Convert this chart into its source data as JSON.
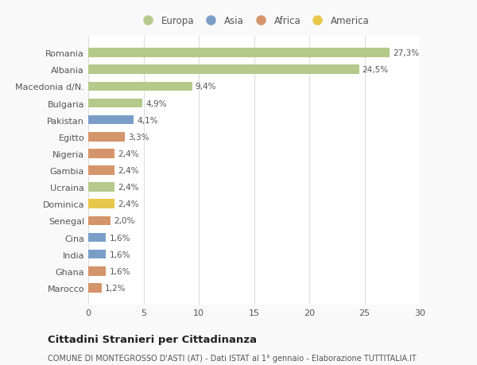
{
  "categories": [
    "Marocco",
    "Ghana",
    "India",
    "Cina",
    "Senegal",
    "Dominica",
    "Ucraina",
    "Gambia",
    "Nigeria",
    "Egitto",
    "Pakistan",
    "Bulgaria",
    "Macedonia d/N.",
    "Albania",
    "Romania"
  ],
  "values": [
    1.2,
    1.6,
    1.6,
    1.6,
    2.0,
    2.4,
    2.4,
    2.4,
    2.4,
    3.3,
    4.1,
    4.9,
    9.4,
    24.5,
    27.3
  ],
  "labels": [
    "1,2%",
    "1,6%",
    "1,6%",
    "1,6%",
    "2,0%",
    "2,4%",
    "2,4%",
    "2,4%",
    "2,4%",
    "3,3%",
    "4,1%",
    "4,9%",
    "9,4%",
    "24,5%",
    "27,3%"
  ],
  "colors": [
    "#d4956a",
    "#d4956a",
    "#7b9ec8",
    "#7b9ec8",
    "#d4956a",
    "#e8c84a",
    "#b5c98a",
    "#d4956a",
    "#d4956a",
    "#d4956a",
    "#7b9ec8",
    "#b5c98a",
    "#b5c98a",
    "#b5c98a",
    "#b5c98a"
  ],
  "legend_labels": [
    "Europa",
    "Asia",
    "Africa",
    "America"
  ],
  "legend_colors": [
    "#b5c98a",
    "#7b9ec8",
    "#d4956a",
    "#e8c84a"
  ],
  "title": "Cittadini Stranieri per Cittadinanza",
  "subtitle": "COMUNE DI MONTEGROSSO D'ASTI (AT) - Dati ISTAT al 1° gennaio - Elaborazione TUTTITALIA.IT",
  "xlim": [
    0,
    30
  ],
  "xticks": [
    0,
    5,
    10,
    15,
    20,
    25,
    30
  ],
  "background_color": "#f9f9f9",
  "bar_background": "#ffffff",
  "grid_color": "#dddddd",
  "text_color": "#555555",
  "label_color": "#555555"
}
